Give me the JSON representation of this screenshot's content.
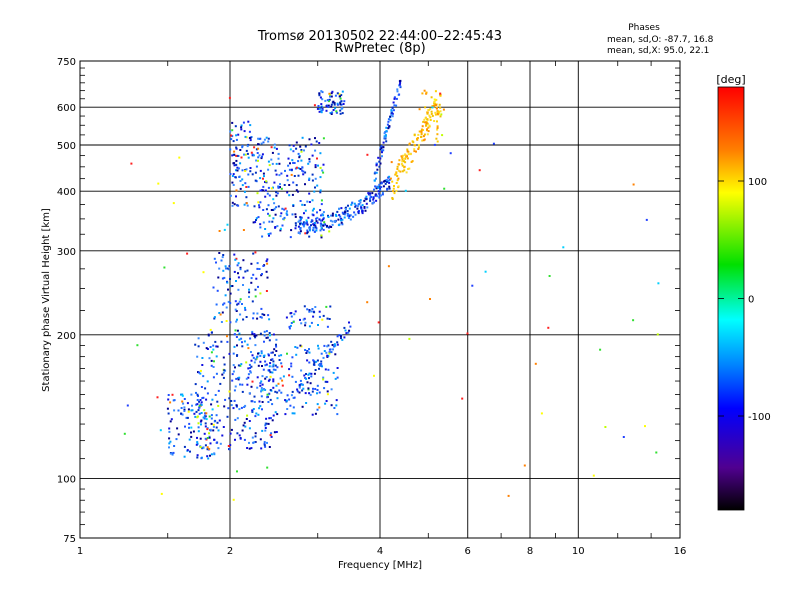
{
  "chart_data": {
    "type": "scatter",
    "title": "Tromsø 20130502 22:44:00–22:45:43",
    "subtitle": "RwPretec (8p)",
    "xlabel": "Frequency [MHz]",
    "ylabel": "Stationary phase Virtual Height [km]",
    "x_scale": "log",
    "y_scale": "log",
    "xlim": [
      1,
      16
    ],
    "ylim": [
      75,
      750
    ],
    "x_ticks": [
      1,
      2,
      4,
      6,
      8,
      10,
      16
    ],
    "y_ticks": [
      75,
      100,
      200,
      300,
      400,
      500,
      600,
      750
    ],
    "grid": true,
    "stats": {
      "heading": "Phases",
      "line_o": "mean, sd,O:  -87.7, 16.8",
      "line_x": "mean, sd,X:   95.0, 22.1"
    },
    "colorbar": {
      "label": "[deg]",
      "ticks": [
        100,
        0,
        -100
      ],
      "range": [
        -180,
        180
      ]
    },
    "groups": [
      {
        "id": "E-layer",
        "x_range": [
          1.5,
          3.5
        ],
        "h_range": [
          105,
          210
        ],
        "dominant_phase": "blue (about -90 deg)"
      },
      {
        "id": "Es low",
        "x_range": [
          1.8,
          2.5
        ],
        "h_range": [
          210,
          300
        ],
        "dominant_phase": "blue (about -90 deg)"
      },
      {
        "id": "F-layer O-mode",
        "x_range": [
          1.9,
          4.6
        ],
        "h_range": [
          320,
          650
        ],
        "dominant_phase": "blue (about -90 deg)"
      },
      {
        "id": "F-layer X-mode",
        "x_range": [
          4.0,
          5.4
        ],
        "h_range": [
          370,
          650
        ],
        "dominant_phase": "yellow/orange (about +95 deg)"
      },
      {
        "id": "Scattered noise",
        "x_range": [
          1.2,
          15
        ],
        "h_range": [
          90,
          650
        ],
        "dominant_phase": "mixed"
      }
    ]
  }
}
